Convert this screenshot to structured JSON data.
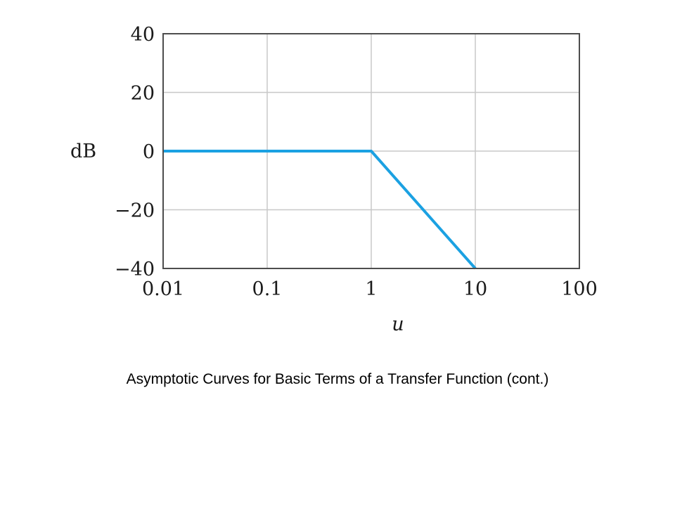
{
  "caption": "Asymptotic Curves for Basic Terms of a Transfer Function (cont.)",
  "chart_data": {
    "type": "line",
    "xscale": "log",
    "xlim": [
      0.01,
      100
    ],
    "ylim": [
      -40,
      40
    ],
    "xticks": [
      0.01,
      0.1,
      1,
      10,
      100
    ],
    "xtick_labels": [
      "0.01",
      "0.1",
      "1",
      "10",
      "100"
    ],
    "yticks": [
      40,
      20,
      0,
      -20,
      -40
    ],
    "ytick_labels": [
      "40",
      "20",
      "0",
      "−20",
      "−40"
    ],
    "xlabel": "u",
    "ylabel": "dB",
    "grid": true,
    "series": [
      {
        "x": [
          0.01,
          1,
          10
        ],
        "y": [
          0,
          0,
          -40
        ],
        "color": "#1ba1e2"
      }
    ]
  }
}
